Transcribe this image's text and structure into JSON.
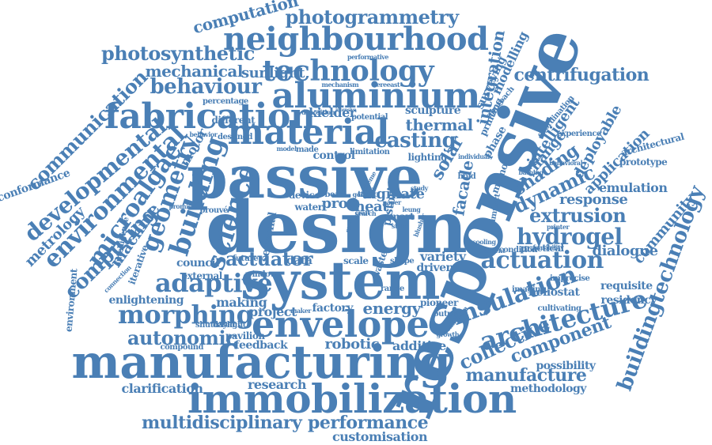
{
  "color": "#4a7fb5",
  "words": [
    "design",
    "responsive",
    "passive",
    "system",
    "manufacturing",
    "immobilization",
    "envelope",
    "material",
    "fabrication",
    "aluminium",
    "neighbourhood",
    "technology",
    "photogrammetry",
    "photosynthetic",
    "computation",
    "mechanical",
    "sunlight",
    "behaviour",
    "communication",
    "developmental",
    "environmental",
    "microalgae",
    "geometry",
    "building",
    "science",
    "computing",
    "machine",
    "metrology",
    "conformance",
    "adaptive",
    "morphing",
    "autonomic",
    "actuator",
    "actuation",
    "architecture",
    "insulation",
    "collective",
    "component",
    "manufacture",
    "buildingtechnology",
    "hydrogel",
    "extrusion",
    "response",
    "dialogue",
    "emulation",
    "community",
    "dynamic",
    "shading",
    "application",
    "deployable",
    "intelligent",
    "change",
    "facade",
    "solar",
    "phase",
    "integration",
    "modelling",
    "surveying",
    "centrifugation",
    "casting",
    "thermal",
    "heat",
    "alginate",
    "proc",
    "water",
    "device",
    "council",
    "external",
    "enlightening",
    "making",
    "project",
    "factory",
    "energy",
    "pioneer",
    "robotic",
    "feedback",
    "pavilion",
    "compound",
    "research",
    "clarification",
    "multidisciplinary",
    "performance",
    "customisation",
    "methodology",
    "possibility",
    "heliostat",
    "requisite",
    "residency",
    "prototype",
    "architectural",
    "practical",
    "condition",
    "cultivating",
    "imprecise",
    "imaging",
    "sculpture",
    "lighting",
    "control",
    "motor",
    "kielder",
    "percentage",
    "different",
    "variety",
    "driven",
    "shape",
    "additive",
    "shuttered",
    "seasonal",
    "environment",
    "iterative",
    "intelligence",
    "connection",
    "scale",
    "waste",
    "piston",
    "smart",
    "topic",
    "bead",
    "window",
    "future",
    "data",
    "made",
    "model",
    "destined",
    "behavior",
    "coordination",
    "experience",
    "cooling",
    "ventilation",
    "daylight",
    "prouvé",
    "promise",
    "mechanism",
    "hereeast",
    "performative",
    "deposition",
    "potential",
    "intensive",
    "approach",
    "printing",
    "memory",
    "impact",
    "bathing",
    "element",
    "individual",
    "behavioral",
    "feasibility",
    "range",
    "going",
    "paper",
    "craft",
    "state",
    "study",
    "leung",
    "output",
    "blusher",
    "maker",
    "growth",
    "limitation",
    "search",
    "mas",
    "hold",
    "scheme",
    "printer",
    "construction"
  ]
}
